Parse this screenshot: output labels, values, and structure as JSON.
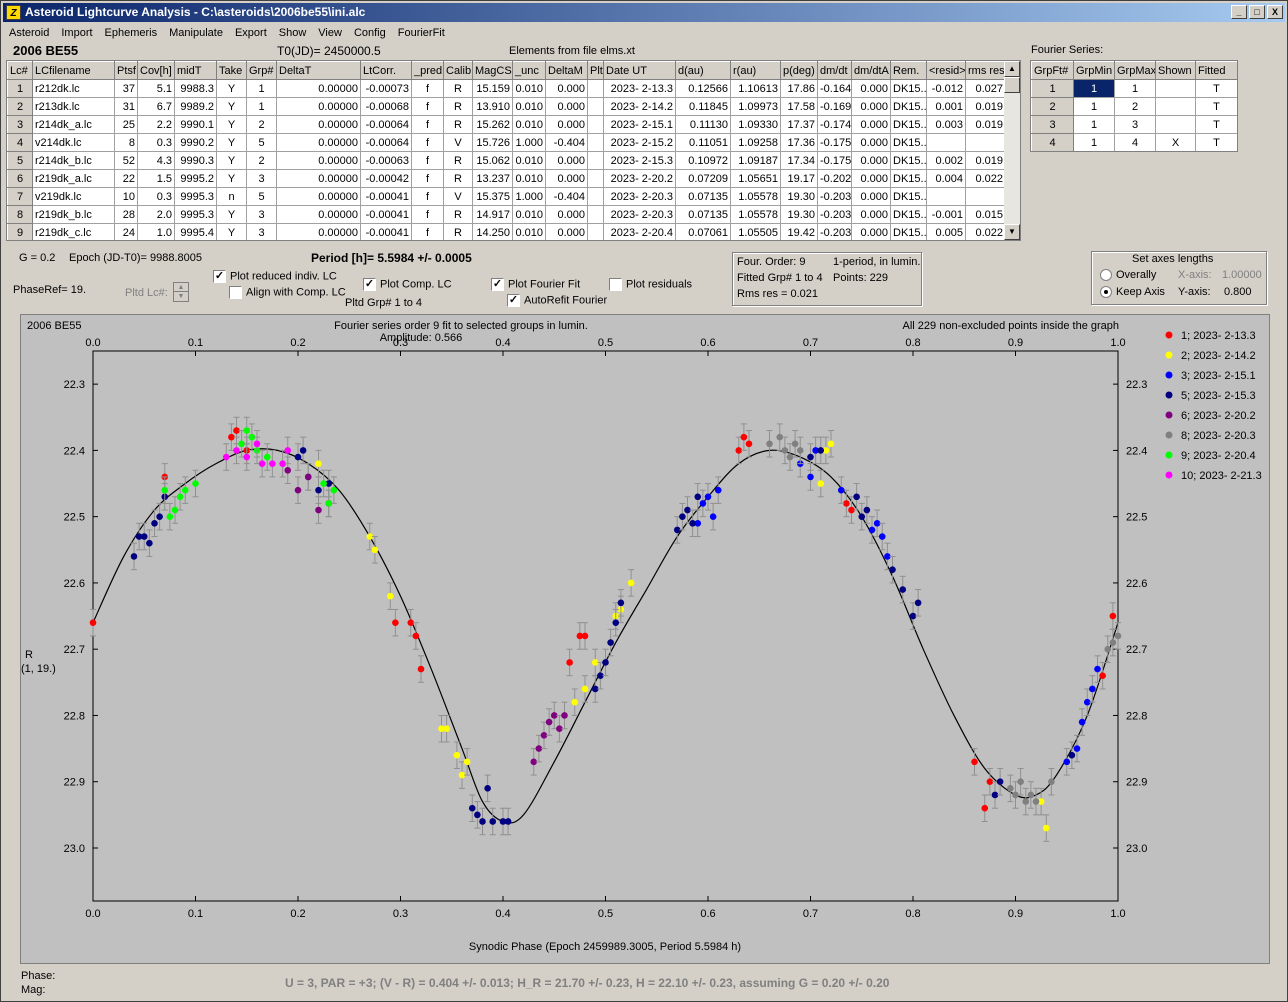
{
  "window": {
    "title": "Asteroid Lightcurve Analysis - C:\\asteroids\\2006be55\\ini.alc",
    "app_icon": "Z",
    "controls": [
      "_",
      "□",
      "X"
    ]
  },
  "menu": [
    "Asteroid",
    "Import",
    "Ephemeris",
    "Manipulate",
    "Export",
    "Show",
    "View",
    "Config",
    "FourierFit"
  ],
  "header": {
    "asteroid": "2006 BE55",
    "t0": "T0(JD)= 2450000.5",
    "elements": "Elements from file elms.xt",
    "fourier_label": "Fourier Series:"
  },
  "lc_table": {
    "columns": [
      "Lc#",
      "LCfilename",
      "Ptsf",
      "Cov[h]",
      "midT",
      "Take",
      "Grp#",
      "DeltaT",
      "LtCorr.",
      "_pred.",
      "Calib.",
      "MagCS",
      "_unc",
      "DeltaM",
      "Plt",
      "Date UT",
      "d(au)",
      "r(au)",
      "p(deg)",
      "dm/dt",
      "dm/dtA",
      "Rem.",
      "<resid>",
      "rms res"
    ],
    "rows": [
      [
        "1",
        "r212dk.lc",
        "37",
        "5.1",
        "9988.3",
        "Y",
        "1",
        "0.00000",
        "-0.00073",
        "f",
        "R",
        "15.159",
        "0.010",
        "0.000",
        "",
        "2023- 2-13.3",
        "0.12566",
        "1.10613",
        "17.86",
        "-0.164",
        "0.000",
        "DK15..",
        "-0.012",
        "0.027"
      ],
      [
        "2",
        "r213dk.lc",
        "31",
        "6.7",
        "9989.2",
        "Y",
        "1",
        "0.00000",
        "-0.00068",
        "f",
        "R",
        "13.910",
        "0.010",
        "0.000",
        "",
        "2023- 2-14.2",
        "0.11845",
        "1.09973",
        "17.58",
        "-0.169",
        "0.000",
        "DK15..",
        "0.001",
        "0.019"
      ],
      [
        "3",
        "r214dk_a.lc",
        "25",
        "2.2",
        "9990.1",
        "Y",
        "2",
        "0.00000",
        "-0.00064",
        "f",
        "R",
        "15.262",
        "0.010",
        "0.000",
        "",
        "2023- 2-15.1",
        "0.11130",
        "1.09330",
        "17.37",
        "-0.174",
        "0.000",
        "DK15..",
        "0.003",
        "0.019"
      ],
      [
        "4",
        "v214dk.lc",
        "8",
        "0.3",
        "9990.2",
        "Y",
        "5",
        "0.00000",
        "-0.00064",
        "f",
        "V",
        "15.726",
        "1.000",
        "-0.404",
        "",
        "2023- 2-15.2",
        "0.11051",
        "1.09258",
        "17.36",
        "-0.175",
        "0.000",
        "DK15..",
        "",
        ""
      ],
      [
        "5",
        "r214dk_b.lc",
        "52",
        "4.3",
        "9990.3",
        "Y",
        "2",
        "0.00000",
        "-0.00063",
        "f",
        "R",
        "15.062",
        "0.010",
        "0.000",
        "",
        "2023- 2-15.3",
        "0.10972",
        "1.09187",
        "17.34",
        "-0.175",
        "0.000",
        "DK15..",
        "0.002",
        "0.019"
      ],
      [
        "6",
        "r219dk_a.lc",
        "22",
        "1.5",
        "9995.2",
        "Y",
        "3",
        "0.00000",
        "-0.00042",
        "f",
        "R",
        "13.237",
        "0.010",
        "0.000",
        "",
        "2023- 2-20.2",
        "0.07209",
        "1.05651",
        "19.17",
        "-0.202",
        "0.000",
        "DK15..",
        "0.004",
        "0.022"
      ],
      [
        "7",
        "v219dk.lc",
        "10",
        "0.3",
        "9995.3",
        "n",
        "5",
        "0.00000",
        "-0.00041",
        "f",
        "V",
        "15.375",
        "1.000",
        "-0.404",
        "",
        "2023- 2-20.3",
        "0.07135",
        "1.05578",
        "19.30",
        "-0.203",
        "0.000",
        "DK15..",
        "",
        ""
      ],
      [
        "8",
        "r219dk_b.lc",
        "28",
        "2.0",
        "9995.3",
        "Y",
        "3",
        "0.00000",
        "-0.00041",
        "f",
        "R",
        "14.917",
        "0.010",
        "0.000",
        "",
        "2023- 2-20.3",
        "0.07135",
        "1.05578",
        "19.30",
        "-0.203",
        "0.000",
        "DK15..",
        "-0.001",
        "0.015"
      ],
      [
        "9",
        "r219dk_c.lc",
        "24",
        "1.0",
        "9995.4",
        "Y",
        "3",
        "0.00000",
        "-0.00041",
        "f",
        "R",
        "14.250",
        "0.010",
        "0.000",
        "",
        "2023- 2-20.4",
        "0.07061",
        "1.05505",
        "19.42",
        "-0.203",
        "0.000",
        "DK15..",
        "0.005",
        "0.022"
      ]
    ]
  },
  "fourier_table": {
    "columns": [
      "GrpFt#",
      "GrpMin",
      "GrpMax",
      "Shown",
      "Fitted"
    ],
    "rows": [
      [
        "1",
        "1",
        "1",
        "",
        "T"
      ],
      [
        "2",
        "1",
        "2",
        "",
        "T"
      ],
      [
        "3",
        "1",
        "3",
        "",
        "T"
      ],
      [
        "4",
        "1",
        "4",
        "X",
        "T"
      ]
    ]
  },
  "controls": {
    "g": "G = 0.2",
    "epoch": "Epoch (JD-T0)= 9988.8005",
    "period": "Period [h]= 5.5984 +/- 0.0005",
    "phaseref": "PhaseRef= 19.",
    "pltd_lc": "Pltd Lc#:",
    "cb_reduced": "Plot reduced indiv. LC",
    "cb_align": "Align with Comp. LC",
    "cb_comp": "Plot Comp. LC",
    "pltd_grp": "Pltd Grp#  1  to   4",
    "cb_fourier": "Plot Fourier Fit",
    "cb_autorefit": "AutoRefit Fourier",
    "cb_resid": "Plot residuals"
  },
  "fitinfo": {
    "order": "Four. Order:  9",
    "mode": "1-period, in lumin.",
    "fitted": "Fitted Grp# 1 to 4",
    "points": "Points: 229",
    "rms": "Rms res      = 0.021"
  },
  "axes_box": {
    "title": "Set axes lengths",
    "overally": "Overally",
    "keep": "Keep Axis",
    "xlabel": "X-axis:",
    "xval": "1.00000",
    "ylabel": "Y-axis:",
    "yval": "0.800"
  },
  "plot": {
    "name": "2006 BE55",
    "caption1": "Fourier series order 9 fit to selected groups in lumin.",
    "caption2": "Amplitude: 0.566",
    "caption_right": "All 229 non-excluded points inside the graph",
    "ylabel1": "R",
    "ylabel2": "(1, 19.)",
    "xlabel": "Synodic Phase (Epoch 2459989.3005, Period 5.5984 h)"
  },
  "footer": {
    "phase": "Phase:",
    "mag": "Mag:",
    "summary": "U = 3, PAR = +3; (V - R) = 0.404 +/- 0.013; H_R = 21.70 +/- 0.23, H = 22.10 +/- 0.23, assuming G = 0.20 +/- 0.20"
  },
  "chart_data": {
    "type": "scatter",
    "xlim": [
      0,
      1
    ],
    "ylim": [
      23.08,
      22.25
    ],
    "xticks": [
      "0.0",
      "0.1",
      "0.2",
      "0.3",
      "0.4",
      "0.5",
      "0.6",
      "0.7",
      "0.8",
      "0.9",
      "1.0"
    ],
    "yticks": [
      "22.3",
      "22.4",
      "22.5",
      "22.6",
      "22.7",
      "22.8",
      "22.9",
      "23.0"
    ],
    "legend": [
      {
        "name": "1; 2023- 2-13.3",
        "color": "#ff0000"
      },
      {
        "name": "2; 2023- 2-14.2",
        "color": "#ffff00"
      },
      {
        "name": "3; 2023- 2-15.1",
        "color": "#0000ff"
      },
      {
        "name": "5; 2023- 2-15.3",
        "color": "#000080"
      },
      {
        "name": "6; 2023- 2-20.2",
        "color": "#800080"
      },
      {
        "name": "8; 2023- 2-20.3",
        "color": "#808080"
      },
      {
        "name": "9; 2023- 2-20.4",
        "color": "#00ff00"
      },
      {
        "name": "10; 2023- 2-21.3",
        "color": "#ff00ff"
      }
    ],
    "fit_curve": [
      [
        0.0,
        22.66
      ],
      [
        0.03,
        22.56
      ],
      [
        0.06,
        22.49
      ],
      [
        0.09,
        22.45
      ],
      [
        0.12,
        22.42
      ],
      [
        0.15,
        22.4
      ],
      [
        0.18,
        22.4
      ],
      [
        0.21,
        22.42
      ],
      [
        0.24,
        22.46
      ],
      [
        0.27,
        22.53
      ],
      [
        0.3,
        22.62
      ],
      [
        0.33,
        22.73
      ],
      [
        0.36,
        22.85
      ],
      [
        0.38,
        22.93
      ],
      [
        0.4,
        22.96
      ],
      [
        0.42,
        22.95
      ],
      [
        0.45,
        22.87
      ],
      [
        0.48,
        22.78
      ],
      [
        0.51,
        22.69
      ],
      [
        0.54,
        22.61
      ],
      [
        0.57,
        22.53
      ],
      [
        0.6,
        22.47
      ],
      [
        0.63,
        22.42
      ],
      [
        0.66,
        22.4
      ],
      [
        0.69,
        22.41
      ],
      [
        0.72,
        22.44
      ],
      [
        0.75,
        22.5
      ],
      [
        0.78,
        22.59
      ],
      [
        0.81,
        22.7
      ],
      [
        0.84,
        22.8
      ],
      [
        0.87,
        22.88
      ],
      [
        0.9,
        22.92
      ],
      [
        0.92,
        22.92
      ],
      [
        0.94,
        22.89
      ],
      [
        0.97,
        22.8
      ],
      [
        1.0,
        22.66
      ]
    ],
    "series": [
      {
        "name": "1",
        "color": "#ff0000",
        "points": [
          [
            0.0,
            22.66
          ],
          [
            0.07,
            22.44
          ],
          [
            0.135,
            22.38
          ],
          [
            0.14,
            22.37
          ],
          [
            0.15,
            22.4
          ],
          [
            0.295,
            22.66
          ],
          [
            0.31,
            22.66
          ],
          [
            0.315,
            22.68
          ],
          [
            0.32,
            22.73
          ],
          [
            0.465,
            22.72
          ],
          [
            0.475,
            22.68
          ],
          [
            0.48,
            22.68
          ],
          [
            0.63,
            22.4
          ],
          [
            0.635,
            22.38
          ],
          [
            0.64,
            22.39
          ],
          [
            0.735,
            22.48
          ],
          [
            0.74,
            22.49
          ],
          [
            0.86,
            22.87
          ],
          [
            0.87,
            22.94
          ],
          [
            0.875,
            22.9
          ],
          [
            0.985,
            22.74
          ],
          [
            0.995,
            22.65
          ]
        ]
      },
      {
        "name": "2",
        "color": "#ffff00",
        "points": [
          [
            0.22,
            22.42
          ],
          [
            0.27,
            22.53
          ],
          [
            0.275,
            22.55
          ],
          [
            0.29,
            22.62
          ],
          [
            0.34,
            22.82
          ],
          [
            0.345,
            22.82
          ],
          [
            0.355,
            22.86
          ],
          [
            0.36,
            22.89
          ],
          [
            0.365,
            22.87
          ],
          [
            0.47,
            22.78
          ],
          [
            0.48,
            22.76
          ],
          [
            0.49,
            22.72
          ],
          [
            0.51,
            22.65
          ],
          [
            0.515,
            22.64
          ],
          [
            0.525,
            22.6
          ],
          [
            0.71,
            22.45
          ],
          [
            0.715,
            22.4
          ],
          [
            0.72,
            22.39
          ],
          [
            0.925,
            22.93
          ],
          [
            0.93,
            22.97
          ]
        ]
      },
      {
        "name": "3",
        "color": "#0000ff",
        "points": [
          [
            0.59,
            22.51
          ],
          [
            0.595,
            22.48
          ],
          [
            0.6,
            22.47
          ],
          [
            0.605,
            22.5
          ],
          [
            0.61,
            22.46
          ],
          [
            0.69,
            22.42
          ],
          [
            0.7,
            22.44
          ],
          [
            0.705,
            22.4
          ],
          [
            0.73,
            22.46
          ],
          [
            0.76,
            22.52
          ],
          [
            0.765,
            22.51
          ],
          [
            0.77,
            22.53
          ],
          [
            0.775,
            22.56
          ],
          [
            0.95,
            22.87
          ],
          [
            0.96,
            22.85
          ],
          [
            0.965,
            22.81
          ],
          [
            0.97,
            22.78
          ],
          [
            0.975,
            22.76
          ],
          [
            0.98,
            22.73
          ]
        ]
      },
      {
        "name": "5",
        "color": "#000080",
        "points": [
          [
            0.04,
            22.56
          ],
          [
            0.045,
            22.53
          ],
          [
            0.05,
            22.53
          ],
          [
            0.055,
            22.54
          ],
          [
            0.06,
            22.51
          ],
          [
            0.065,
            22.5
          ],
          [
            0.07,
            22.47
          ],
          [
            0.2,
            22.41
          ],
          [
            0.205,
            22.4
          ],
          [
            0.21,
            22.44
          ],
          [
            0.22,
            22.46
          ],
          [
            0.23,
            22.45
          ],
          [
            0.37,
            22.94
          ],
          [
            0.375,
            22.95
          ],
          [
            0.38,
            22.96
          ],
          [
            0.385,
            22.91
          ],
          [
            0.39,
            22.96
          ],
          [
            0.4,
            22.96
          ],
          [
            0.405,
            22.96
          ],
          [
            0.49,
            22.76
          ],
          [
            0.495,
            22.74
          ],
          [
            0.5,
            22.72
          ],
          [
            0.505,
            22.69
          ],
          [
            0.51,
            22.66
          ],
          [
            0.515,
            22.63
          ],
          [
            0.57,
            22.52
          ],
          [
            0.575,
            22.5
          ],
          [
            0.58,
            22.49
          ],
          [
            0.585,
            22.51
          ],
          [
            0.59,
            22.47
          ],
          [
            0.7,
            22.41
          ],
          [
            0.71,
            22.4
          ],
          [
            0.745,
            22.47
          ],
          [
            0.75,
            22.5
          ],
          [
            0.755,
            22.49
          ],
          [
            0.78,
            22.58
          ],
          [
            0.79,
            22.61
          ],
          [
            0.8,
            22.65
          ],
          [
            0.805,
            22.63
          ],
          [
            0.88,
            22.92
          ],
          [
            0.885,
            22.9
          ],
          [
            0.955,
            22.86
          ]
        ]
      },
      {
        "name": "6",
        "color": "#800080",
        "points": [
          [
            0.19,
            22.43
          ],
          [
            0.2,
            22.46
          ],
          [
            0.21,
            22.44
          ],
          [
            0.22,
            22.49
          ],
          [
            0.23,
            22.48
          ],
          [
            0.43,
            22.87
          ],
          [
            0.435,
            22.85
          ],
          [
            0.44,
            22.83
          ],
          [
            0.445,
            22.81
          ],
          [
            0.45,
            22.8
          ],
          [
            0.455,
            22.82
          ],
          [
            0.46,
            22.8
          ]
        ]
      },
      {
        "name": "8",
        "color": "#808080",
        "points": [
          [
            0.66,
            22.39
          ],
          [
            0.67,
            22.38
          ],
          [
            0.675,
            22.4
          ],
          [
            0.68,
            22.41
          ],
          [
            0.685,
            22.39
          ],
          [
            0.69,
            22.4
          ],
          [
            0.895,
            22.91
          ],
          [
            0.9,
            22.92
          ],
          [
            0.905,
            22.9
          ],
          [
            0.91,
            22.93
          ],
          [
            0.915,
            22.92
          ],
          [
            0.92,
            22.93
          ],
          [
            0.935,
            22.9
          ],
          [
            0.99,
            22.7
          ],
          [
            0.995,
            22.69
          ],
          [
            1.0,
            22.68
          ]
        ]
      },
      {
        "name": "9",
        "color": "#00ff00",
        "points": [
          [
            0.07,
            22.46
          ],
          [
            0.075,
            22.5
          ],
          [
            0.08,
            22.49
          ],
          [
            0.085,
            22.47
          ],
          [
            0.09,
            22.46
          ],
          [
            0.1,
            22.45
          ],
          [
            0.145,
            22.39
          ],
          [
            0.15,
            22.37
          ],
          [
            0.155,
            22.38
          ],
          [
            0.16,
            22.4
          ],
          [
            0.17,
            22.41
          ],
          [
            0.225,
            22.45
          ],
          [
            0.23,
            22.48
          ],
          [
            0.235,
            22.46
          ]
        ]
      },
      {
        "name": "10",
        "color": "#ff00ff",
        "points": [
          [
            0.13,
            22.41
          ],
          [
            0.14,
            22.4
          ],
          [
            0.15,
            22.41
          ],
          [
            0.16,
            22.39
          ],
          [
            0.165,
            22.42
          ],
          [
            0.175,
            22.42
          ],
          [
            0.185,
            22.42
          ],
          [
            0.19,
            22.4
          ]
        ]
      }
    ]
  }
}
